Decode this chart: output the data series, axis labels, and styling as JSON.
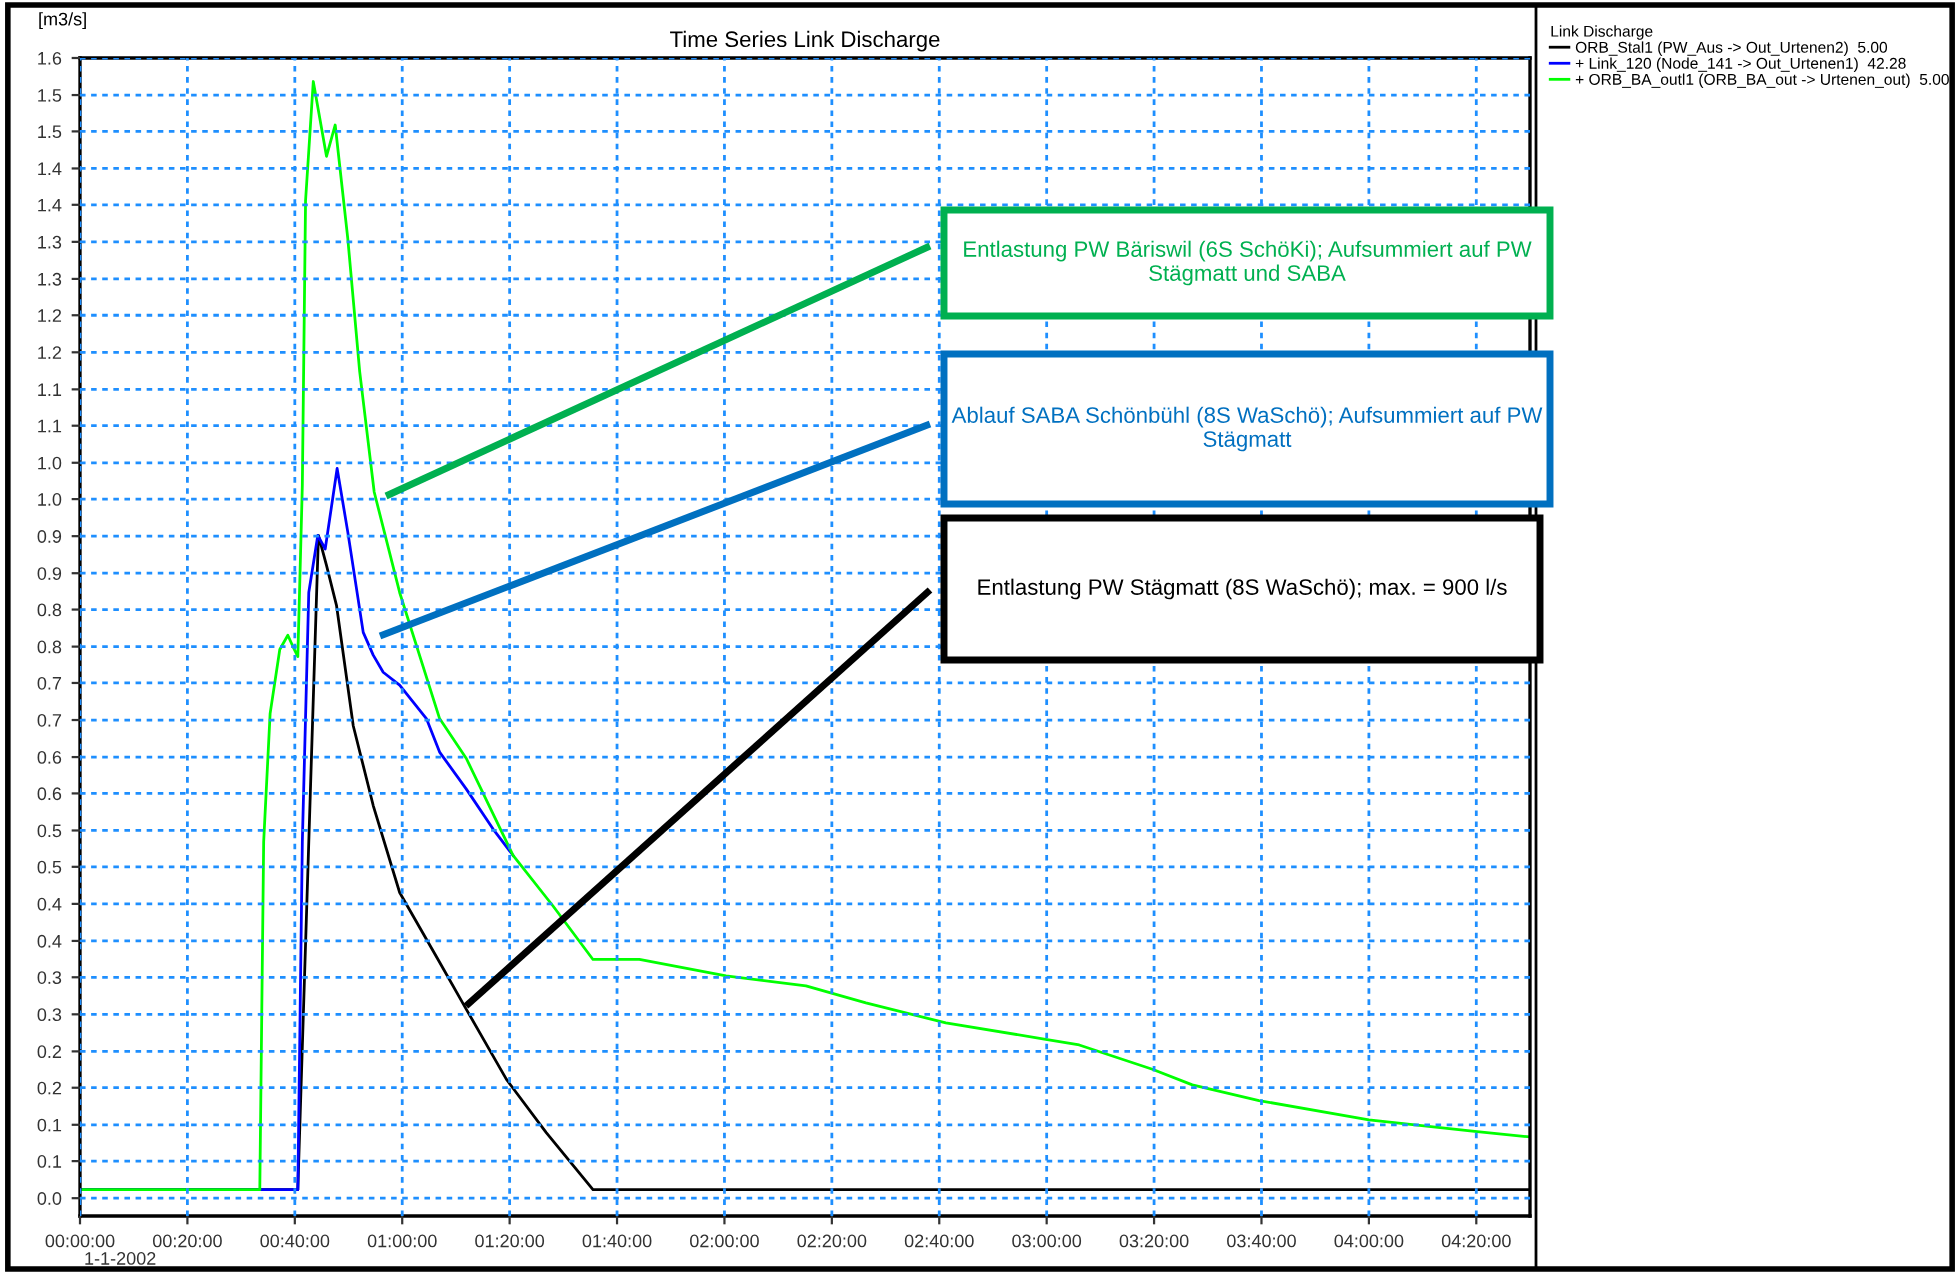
{
  "chart_data": {
    "type": "line",
    "title": "Time Series Link Discharge",
    "ylabel": "[m3/s]",
    "legend_title": "Link Discharge",
    "legend": "top right",
    "grid": true,
    "line_style": "solid",
    "marker": "none",
    "xlim": [
      0,
      4.5
    ],
    "xticks": [
      {
        "value": 0,
        "label": "00:00:00"
      },
      {
        "value": 0.3333333333333333,
        "label": "00:20:00"
      },
      {
        "value": 0.6666666666666666,
        "label": "00:40:00"
      },
      {
        "value": 1,
        "label": "01:00:00"
      },
      {
        "value": 1.3333333333333333,
        "label": "01:20:00"
      },
      {
        "value": 1.6666666666666667,
        "label": "01:40:00"
      },
      {
        "value": 2,
        "label": "02:00:00"
      },
      {
        "value": 2.3333333333333335,
        "label": "02:20:00"
      },
      {
        "value": 2.6666666666666665,
        "label": "02:40:00"
      },
      {
        "value": 3,
        "label": "03:00:00"
      },
      {
        "value": 3.3333333333333335,
        "label": "03:20:00"
      },
      {
        "value": 3.6666666666666665,
        "label": "03:40:00"
      },
      {
        "value": 4,
        "label": "04:00:00"
      },
      {
        "value": 4.333333333333333,
        "label": "04:20:00"
      }
    ],
    "ylim": [
      -0.025,
      1.6
    ],
    "yticks": [
      {
        "value": 0,
        "label": "0.0"
      },
      {
        "value": 0.052,
        "label": "0.1"
      },
      {
        "value": 0.103,
        "label": "0.1"
      },
      {
        "value": 0.155,
        "label": "0.2"
      },
      {
        "value": 0.206,
        "label": "0.2"
      },
      {
        "value": 0.258,
        "label": "0.3"
      },
      {
        "value": 0.31,
        "label": "0.3"
      },
      {
        "value": 0.361,
        "label": "0.4"
      },
      {
        "value": 0.413,
        "label": "0.4"
      },
      {
        "value": 0.465,
        "label": "0.5"
      },
      {
        "value": 0.516,
        "label": "0.5"
      },
      {
        "value": 0.568,
        "label": "0.6"
      },
      {
        "value": 0.619,
        "label": "0.6"
      },
      {
        "value": 0.671,
        "label": "0.7"
      },
      {
        "value": 0.723,
        "label": "0.7"
      },
      {
        "value": 0.774,
        "label": "0.8"
      },
      {
        "value": 0.826,
        "label": "0.8"
      },
      {
        "value": 0.877,
        "label": "0.9"
      },
      {
        "value": 0.929,
        "label": "0.9"
      },
      {
        "value": 0.981,
        "label": "1.0"
      },
      {
        "value": 1.032,
        "label": "1.0"
      },
      {
        "value": 1.084,
        "label": "1.1"
      },
      {
        "value": 1.135,
        "label": "1.1"
      },
      {
        "value": 1.187,
        "label": "1.2"
      },
      {
        "value": 1.239,
        "label": "1.2"
      },
      {
        "value": 1.29,
        "label": "1.3"
      },
      {
        "value": 1.342,
        "label": "1.3"
      },
      {
        "value": 1.394,
        "label": "1.4"
      },
      {
        "value": 1.445,
        "label": "1.4"
      },
      {
        "value": 1.497,
        "label": "1.5"
      },
      {
        "value": 1.548,
        "label": "1.5"
      },
      {
        "value": 1.6,
        "label": "1.6"
      }
    ],
    "series": [
      {
        "name": "ORB_Stal1 (PW_Aus -> Out_Urtenen2)  5.00",
        "color": "#000000",
        "x": [
          0,
          0.676,
          0.74,
          0.765,
          0.796,
          0.848,
          0.91,
          0.992,
          1.116,
          1.199,
          1.323,
          1.447,
          1.592,
          4.5
        ],
        "values": [
          0.012,
          0.012,
          0.93,
          0.888,
          0.832,
          0.663,
          0.551,
          0.429,
          0.331,
          0.265,
          0.167,
          0.092,
          0.012,
          0.012
        ]
      },
      {
        "name": "+ Link_120 (Node_141 -> Out_Urtenen1)  42.28",
        "color": "#0000ff",
        "x": [
          0,
          0.676,
          0.69,
          0.71,
          0.738,
          0.761,
          0.798,
          0.831,
          0.879,
          0.91,
          0.941,
          0.992,
          1.075,
          1.116,
          1.199,
          1.282,
          1.344
        ],
        "values": [
          0.012,
          0.012,
          0.5,
          0.85,
          0.93,
          0.911,
          1.024,
          0.935,
          0.794,
          0.762,
          0.738,
          0.72,
          0.673,
          0.626,
          0.574,
          0.518,
          0.481
        ]
      },
      {
        "name": "+ ORB_BA_outl1 (ORB_BA_out -> Urtenen_out)  5.00",
        "color": "#00ff00",
        "x": [
          0,
          0.558,
          0.57,
          0.59,
          0.62,
          0.645,
          0.665,
          0.676,
          0.69,
          0.7,
          0.724,
          0.765,
          0.792,
          0.831,
          0.868,
          0.913,
          0.992,
          1.116,
          1.199,
          1.344,
          1.468,
          1.592,
          1.736,
          2.005,
          2.253,
          2.439,
          2.687,
          2.997,
          3.101,
          3.328,
          3.452,
          3.659,
          4.0,
          4.321,
          4.498
        ],
        "values": [
          0.012,
          0.012,
          0.5,
          0.68,
          0.77,
          0.79,
          0.77,
          0.76,
          1.0,
          1.4,
          1.567,
          1.462,
          1.506,
          1.347,
          1.16,
          0.991,
          0.85,
          0.673,
          0.617,
          0.481,
          0.41,
          0.335,
          0.335,
          0.312,
          0.298,
          0.274,
          0.246,
          0.223,
          0.215,
          0.181,
          0.159,
          0.137,
          0.11,
          0.094,
          0.086
        ]
      }
    ],
    "annotations": [
      "Entlastung PW Bäriswil (6S SchöKi); Aufsummiert auf PW Stägmatt und SABA",
      "Ablauf SABA Schönbühl (8S WaSchö); Aufsummiert auf PW Stägmatt",
      "Entlastung PW Stägmatt (8S WaSchö); max. = 900 l/s",
      "1-1-2002"
    ]
  }
}
